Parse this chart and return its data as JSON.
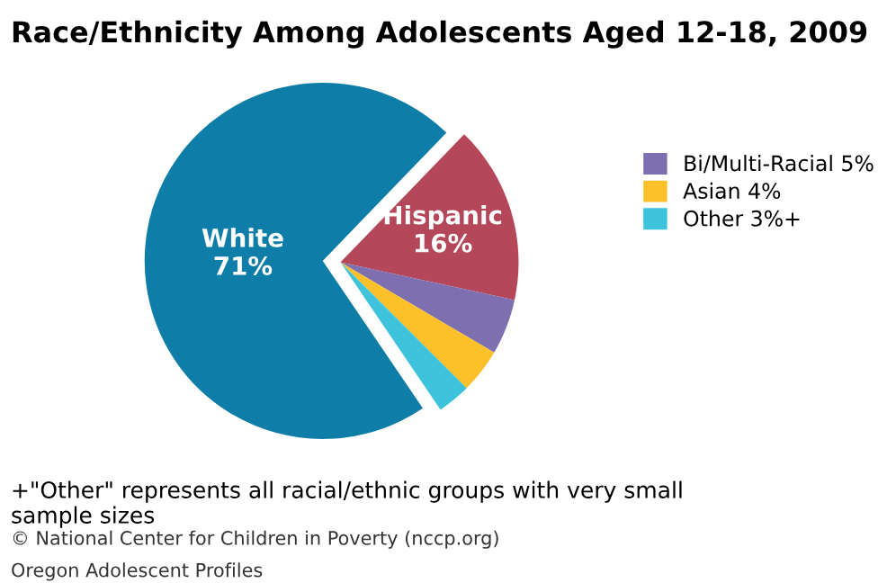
{
  "chart_data": {
    "type": "pie",
    "title": "Race/Ethnicity Among Adolescents Aged 12-18, 2009",
    "categories": [
      "White",
      "Hispanic",
      "Bi/Multi-Racial",
      "Asian",
      "Other"
    ],
    "values": [
      71,
      16,
      5,
      4,
      3
    ],
    "value_labels": [
      "71%",
      "16%",
      "5%",
      "4%",
      "3%+"
    ],
    "colors": [
      "#0e7ea8",
      "#b5475a",
      "#7d6fb0",
      "#fcc02a",
      "#3ec3dc"
    ],
    "legend": "right",
    "annotations": [
      "+\"Other\" represents all racial/ethnic groups with very small sample sizes",
      "© National Center for Children in Poverty (nccp.org)",
      "Oregon Adolescent Profiles"
    ]
  }
}
